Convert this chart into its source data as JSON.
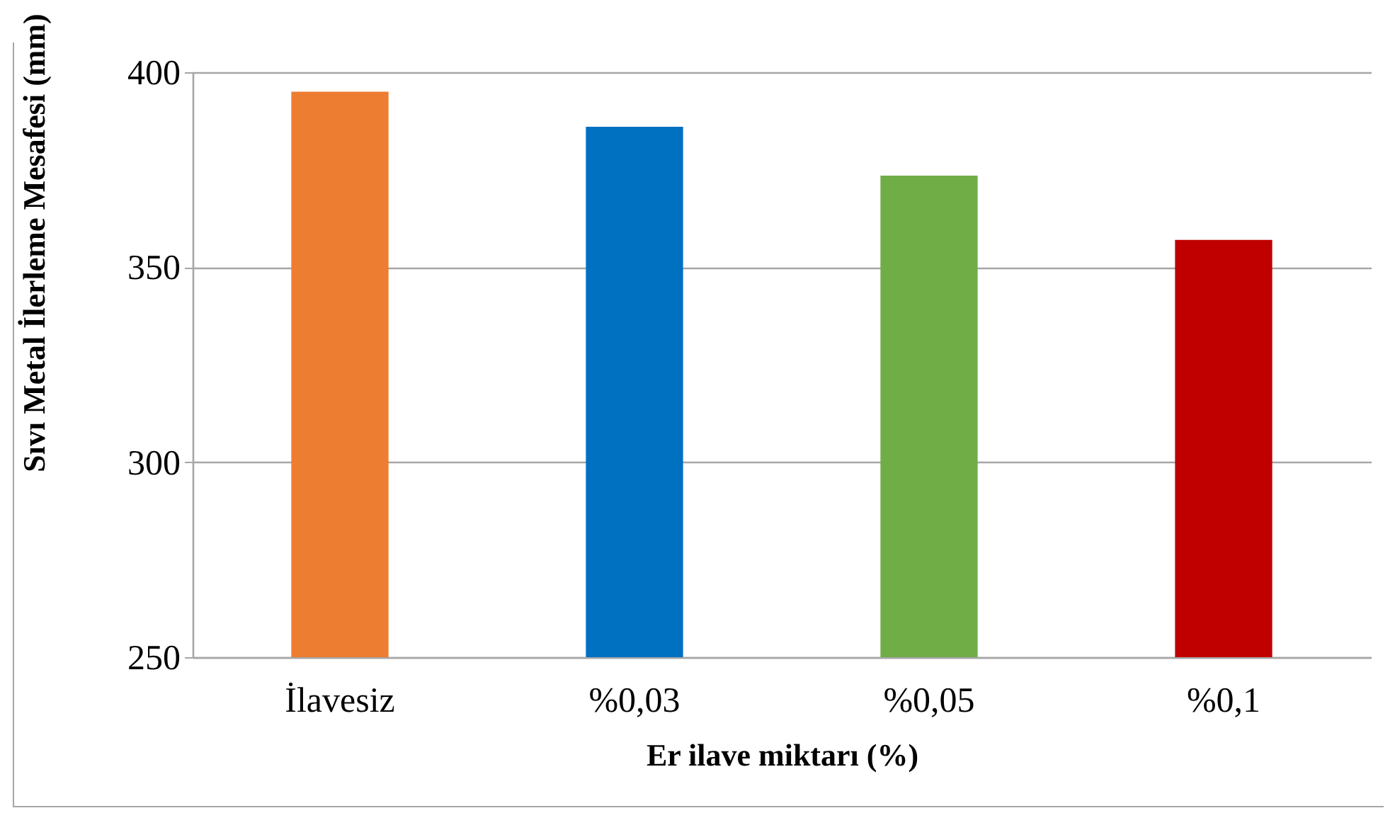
{
  "chart_data": {
    "type": "bar",
    "xlabel": "Er ilave miktarı (%)",
    "ylabel": "Sıvı Metal İlerleme Mesafesi (mm)",
    "categories": [
      "İlavesiz",
      "%0,03",
      "%0,05",
      "%0,1"
    ],
    "values": [
      395,
      386,
      373.5,
      357
    ],
    "colors": [
      "#ed7d31",
      "#0070c0",
      "#70ad47",
      "#c00000"
    ],
    "ylim": [
      250,
      400
    ],
    "yticks": [
      250,
      300,
      350,
      400
    ],
    "grid": "y",
    "legend": false
  }
}
